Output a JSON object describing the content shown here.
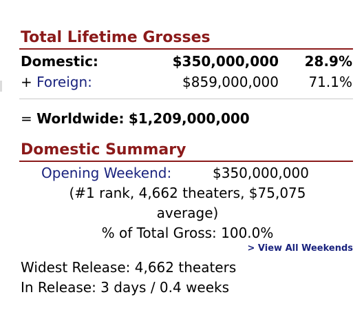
{
  "lifetime": {
    "heading": "Total Lifetime Grosses",
    "domestic": {
      "label": "Domestic:",
      "amount": "$350,000,000",
      "percent": "28.9%"
    },
    "foreign": {
      "prefix": "+",
      "label": "Foreign:",
      "amount": "$859,000,000",
      "percent": "71.1%"
    },
    "worldwide": {
      "prefix": "=",
      "label": "Worldwide:",
      "amount": "$1,209,000,000"
    }
  },
  "summary": {
    "heading": "Domestic Summary",
    "opening_label": "Opening Weekend:",
    "opening_amount": "$350,000,000",
    "opening_detail_line1": "(#1 rank, 4,662 theaters, $75,075",
    "opening_detail_line2": "average)",
    "pct_total": "% of Total Gross: 100.0%",
    "view_all_link": "> View All Weekends",
    "widest_release": "Widest Release: 4,662 theaters",
    "in_release": "In Release: 3 days / 0.4 weeks"
  },
  "colors": {
    "heading": "#8b1a1a",
    "link": "#1a237e"
  }
}
